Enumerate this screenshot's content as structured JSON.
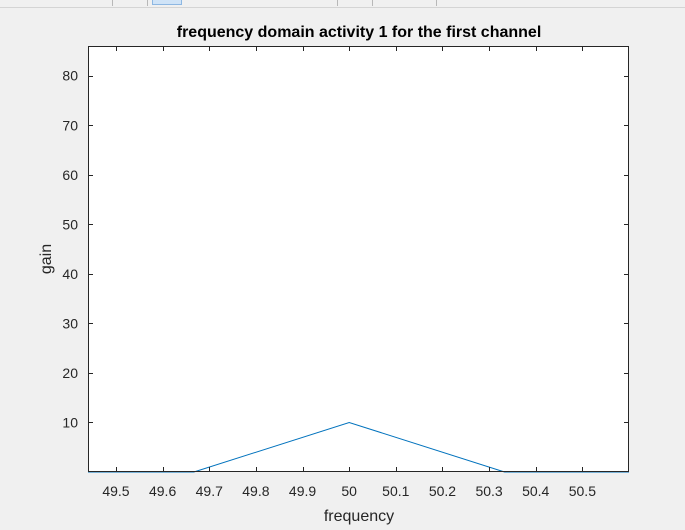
{
  "chart_data": {
    "type": "line",
    "title": "frequency domain  activity 1 for the first channel",
    "xlabel": "frequency",
    "ylabel": "gain",
    "xlim": [
      49.44,
      50.6
    ],
    "ylim": [
      0,
      86
    ],
    "xticks": [
      49.5,
      49.6,
      49.7,
      49.8,
      49.9,
      50,
      50.1,
      50.2,
      50.3,
      50.4,
      50.5
    ],
    "xtick_labels": [
      "49.5",
      "49.6",
      "49.7",
      "49.8",
      "49.9",
      "50",
      "50.1",
      "50.2",
      "50.3",
      "50.4",
      "50.5"
    ],
    "yticks": [
      10,
      20,
      30,
      40,
      50,
      60,
      70,
      80
    ],
    "ytick_labels": [
      "10",
      "20",
      "30",
      "40",
      "50",
      "60",
      "70",
      "80"
    ],
    "grid": false,
    "series": [
      {
        "color": "#0072bd",
        "x": [
          49.44,
          49.667,
          50.0,
          50.333,
          50.6
        ],
        "y": [
          0,
          0,
          10,
          0,
          0
        ]
      }
    ]
  }
}
